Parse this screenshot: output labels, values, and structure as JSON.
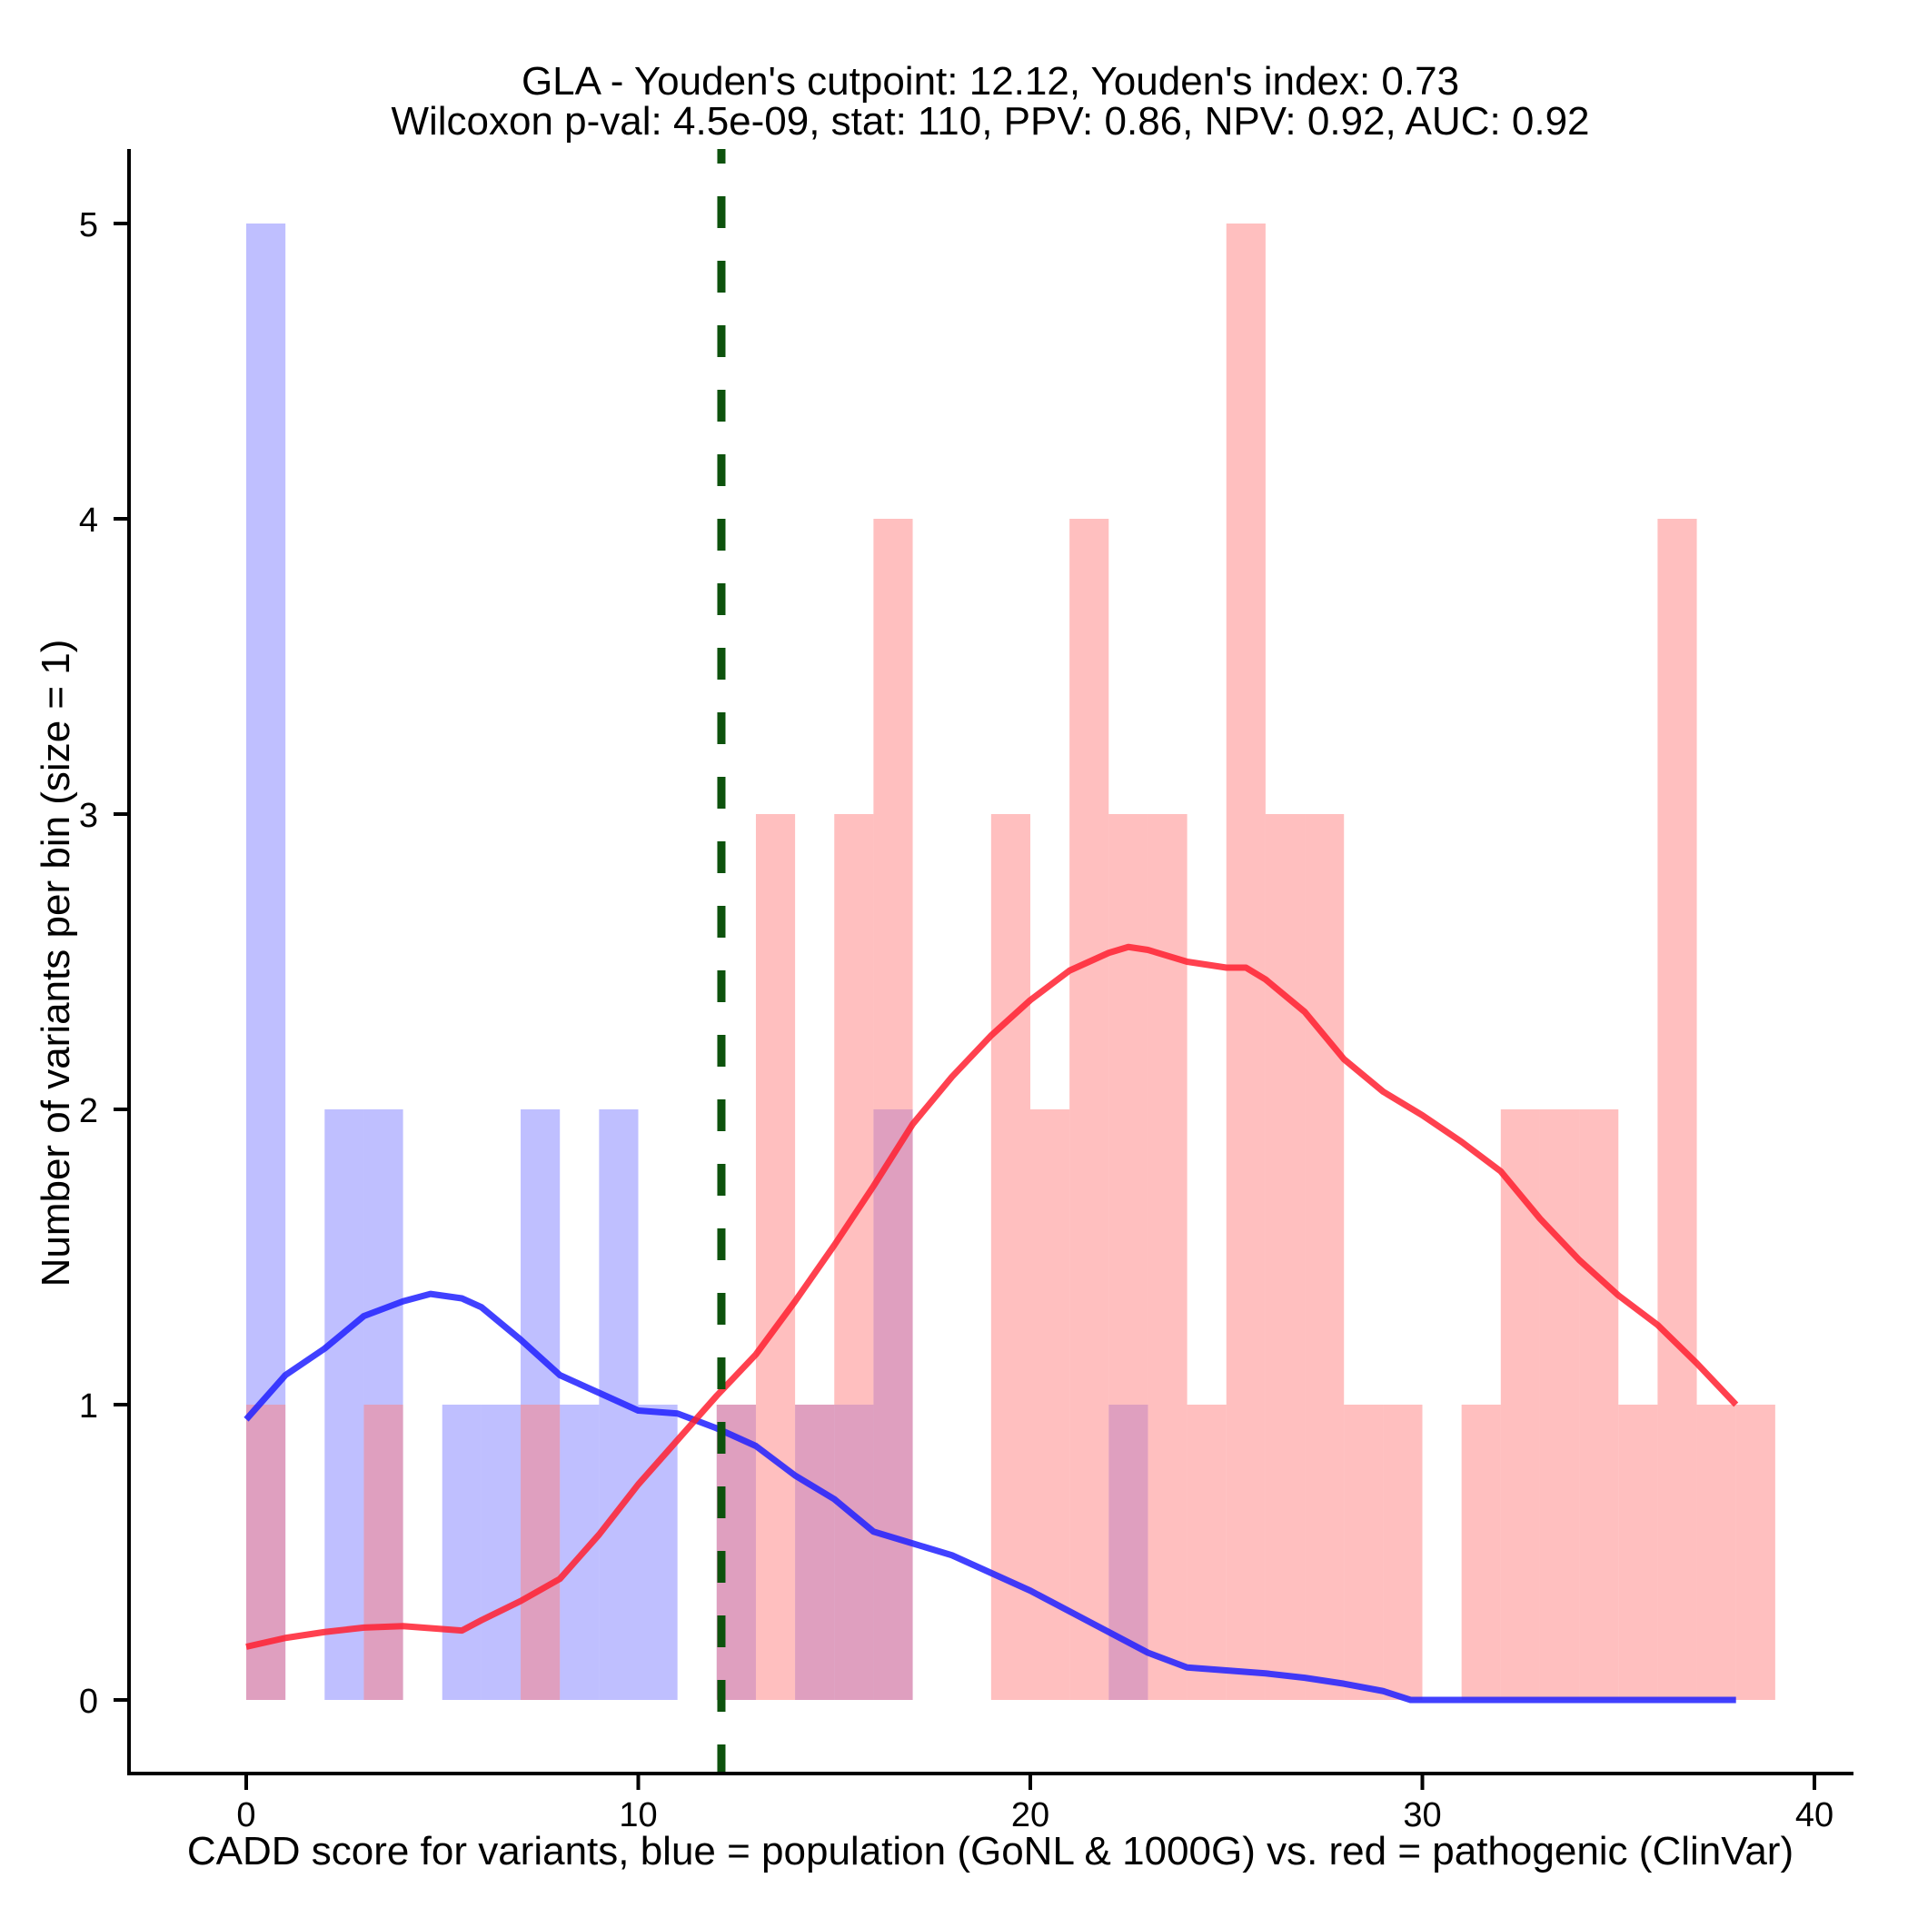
{
  "chart_data": {
    "type": "bar",
    "title_lines": [
      "GLA - Youden's cutpoint: 12.12, Youden's index: 0.73",
      "Wilcoxon p-val: 4.5e-09, stat: 110, PPV: 0.86, NPV: 0.92, AUC: 0.92"
    ],
    "xlabel": "CADD score for variants, blue = population (GoNL & 1000G) vs. red = pathogenic (ClinVar)",
    "ylabel": "Number of variants per bin (size = 1)",
    "xlim": [
      -3,
      41
    ],
    "ylim": [
      -0.25,
      5.25
    ],
    "x_ticks": [
      0,
      10,
      20,
      30,
      40
    ],
    "x_tick_labels": [
      "0",
      "10",
      "20",
      "30",
      "40"
    ],
    "y_ticks": [
      0,
      1,
      2,
      3,
      4,
      5
    ],
    "y_tick_labels": [
      "0",
      "1",
      "2",
      "3",
      "4",
      "5"
    ],
    "bin_size": 1,
    "grid": false,
    "colors": {
      "population_bar": "#8080ff",
      "pathogenic_bar": "#ff8080",
      "population_line": "#2020ff",
      "pathogenic_line": "#ff2030",
      "cutpoint_line": "#0d520d"
    },
    "cutpoint": 12.12,
    "series": [
      {
        "name": "population (GoNL & 1000G)",
        "kind": "histogram",
        "color_key": "population_bar",
        "bins": [
          {
            "start": 0,
            "count": 5
          },
          {
            "start": 2,
            "count": 2
          },
          {
            "start": 3,
            "count": 2
          },
          {
            "start": 5,
            "count": 1
          },
          {
            "start": 6,
            "count": 1
          },
          {
            "start": 7,
            "count": 2
          },
          {
            "start": 8,
            "count": 1
          },
          {
            "start": 9,
            "count": 2
          },
          {
            "start": 10,
            "count": 1
          },
          {
            "start": 12,
            "count": 1
          },
          {
            "start": 14,
            "count": 1
          },
          {
            "start": 15,
            "count": 1
          },
          {
            "start": 16,
            "count": 2
          },
          {
            "start": 22,
            "count": 1
          }
        ]
      },
      {
        "name": "pathogenic (ClinVar)",
        "kind": "histogram",
        "color_key": "pathogenic_bar",
        "bins": [
          {
            "start": 0,
            "count": 1
          },
          {
            "start": 3,
            "count": 1
          },
          {
            "start": 7,
            "count": 1
          },
          {
            "start": 12,
            "count": 1
          },
          {
            "start": 13,
            "count": 3
          },
          {
            "start": 14,
            "count": 1
          },
          {
            "start": 15,
            "count": 3
          },
          {
            "start": 16,
            "count": 4
          },
          {
            "start": 19,
            "count": 3
          },
          {
            "start": 20,
            "count": 2
          },
          {
            "start": 21,
            "count": 4
          },
          {
            "start": 22,
            "count": 3
          },
          {
            "start": 23,
            "count": 3
          },
          {
            "start": 24,
            "count": 1
          },
          {
            "start": 25,
            "count": 5
          },
          {
            "start": 26,
            "count": 3
          },
          {
            "start": 27,
            "count": 3
          },
          {
            "start": 28,
            "count": 1
          },
          {
            "start": 29,
            "count": 1
          },
          {
            "start": 31,
            "count": 1
          },
          {
            "start": 32,
            "count": 2
          },
          {
            "start": 33,
            "count": 2
          },
          {
            "start": 34,
            "count": 2
          },
          {
            "start": 35,
            "count": 1
          },
          {
            "start": 36,
            "count": 4
          },
          {
            "start": 37,
            "count": 1
          },
          {
            "start": 38,
            "count": 1
          }
        ]
      },
      {
        "name": "population density",
        "kind": "line",
        "color_key": "population_line",
        "x": [
          0,
          1,
          2,
          3,
          4,
          4.7,
          5.5,
          6,
          7,
          8,
          9,
          10,
          11,
          12,
          13,
          14,
          15,
          16,
          17,
          18,
          19,
          20,
          21,
          22,
          23,
          24,
          25,
          26,
          27,
          28,
          29,
          29.7,
          30,
          32,
          34,
          36,
          38
        ],
        "y": [
          0.95,
          1.1,
          1.19,
          1.3,
          1.35,
          1.375,
          1.36,
          1.33,
          1.22,
          1.1,
          1.04,
          0.98,
          0.97,
          0.92,
          0.86,
          0.76,
          0.68,
          0.57,
          0.53,
          0.49,
          0.43,
          0.37,
          0.3,
          0.23,
          0.16,
          0.11,
          0.1,
          0.09,
          0.075,
          0.055,
          0.03,
          0.0,
          0.0,
          0.0,
          0.0,
          0.0,
          0.0
        ]
      },
      {
        "name": "pathogenic density",
        "kind": "line",
        "color_key": "pathogenic_line",
        "x": [
          0,
          1,
          2,
          3,
          4,
          5,
          5.5,
          6,
          7,
          8,
          9,
          10,
          11,
          12,
          13,
          14,
          15,
          16,
          17,
          18,
          19,
          20,
          21,
          22,
          22.5,
          23,
          24,
          25,
          25.5,
          26,
          27,
          28,
          29,
          30,
          31,
          32,
          33,
          34,
          35,
          36,
          37,
          38
        ],
        "y": [
          0.18,
          0.21,
          0.23,
          0.245,
          0.25,
          0.24,
          0.235,
          0.27,
          0.335,
          0.41,
          0.56,
          0.73,
          0.88,
          1.03,
          1.17,
          1.35,
          1.54,
          1.74,
          1.95,
          2.11,
          2.25,
          2.37,
          2.47,
          2.53,
          2.55,
          2.54,
          2.5,
          2.48,
          2.48,
          2.44,
          2.33,
          2.17,
          2.06,
          1.98,
          1.89,
          1.79,
          1.63,
          1.49,
          1.37,
          1.27,
          1.14,
          1.0
        ]
      }
    ]
  }
}
